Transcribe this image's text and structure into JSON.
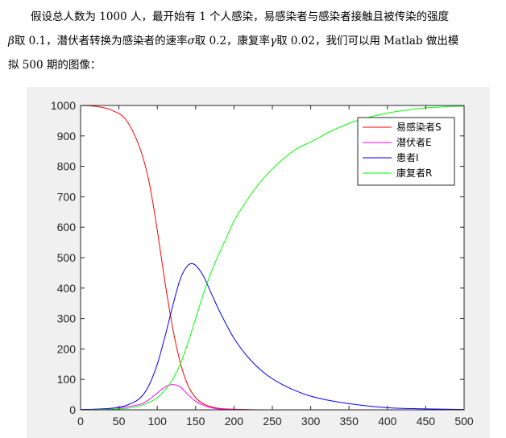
{
  "paragraph": {
    "line1": "假设总人数为 1000 人，最开始有 1 个人感染，易感染者与感染者接触且被传染的强度",
    "line2_beta": "β",
    "line2_a": "取 0.1，潜伏者转换为感染者的速率",
    "line2_sigma": "σ",
    "line2_b": "取 0.2，康复率",
    "line2_gamma": "γ",
    "line2_c": "取 0.02，我们可以用 Matlab 做出模",
    "line3": "拟 500 期的图像："
  },
  "chart_data": {
    "type": "line",
    "title": "",
    "xlabel": "",
    "ylabel": "",
    "xlim": [
      0,
      500
    ],
    "ylim": [
      0,
      1000
    ],
    "xticks": [
      0,
      50,
      100,
      150,
      200,
      250,
      300,
      350,
      400,
      450,
      500
    ],
    "yticks": [
      0,
      100,
      200,
      300,
      400,
      500,
      600,
      700,
      800,
      900,
      1000
    ],
    "grid": false,
    "legend_position": "top-right",
    "series": [
      {
        "name": "易感染者S",
        "color": "#ff0000",
        "x": [
          0,
          20,
          40,
          60,
          80,
          90,
          100,
          110,
          120,
          130,
          140,
          150,
          160,
          170,
          180,
          200,
          250,
          300,
          400,
          500
        ],
        "y": [
          1000,
          997,
          985,
          950,
          840,
          740,
          590,
          420,
          270,
          155,
          80,
          40,
          20,
          10,
          5,
          2,
          0,
          0,
          0,
          0
        ]
      },
      {
        "name": "潜伏者E",
        "color": "#ff00ff",
        "x": [
          0,
          40,
          60,
          80,
          90,
          100,
          110,
          120,
          130,
          140,
          150,
          160,
          170,
          180,
          200,
          250,
          500
        ],
        "y": [
          0,
          5,
          10,
          20,
          35,
          55,
          75,
          83,
          75,
          50,
          28,
          15,
          7,
          3,
          1,
          0,
          0
        ]
      },
      {
        "name": "患者I",
        "color": "#0000ff",
        "x": [
          0,
          20,
          40,
          60,
          80,
          90,
          100,
          110,
          120,
          130,
          140,
          145,
          150,
          160,
          170,
          180,
          200,
          220,
          240,
          260,
          280,
          300,
          330,
          360,
          400,
          450,
          500
        ],
        "y": [
          1,
          2,
          5,
          15,
          45,
          85,
          150,
          240,
          340,
          430,
          475,
          480,
          475,
          440,
          385,
          330,
          235,
          168,
          120,
          87,
          63,
          45,
          28,
          17,
          7,
          3,
          1
        ]
      },
      {
        "name": "康复者R",
        "color": "#00ff00",
        "x": [
          0,
          60,
          80,
          100,
          110,
          120,
          130,
          140,
          150,
          160,
          170,
          180,
          190,
          200,
          220,
          240,
          260,
          280,
          300,
          330,
          360,
          400,
          450,
          500
        ],
        "y": [
          0,
          5,
          15,
          40,
          65,
          100,
          150,
          220,
          300,
          380,
          450,
          510,
          565,
          620,
          700,
          765,
          815,
          855,
          880,
          920,
          950,
          975,
          992,
          998
        ]
      }
    ]
  }
}
